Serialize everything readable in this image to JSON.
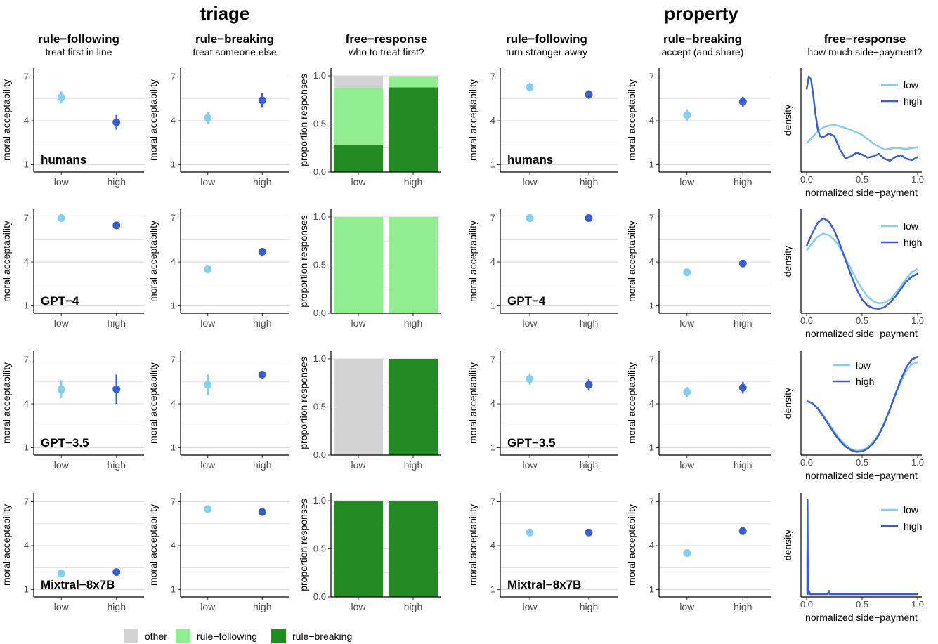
{
  "sections": [
    {
      "title": "triage",
      "columns": [
        {
          "title": "rule−following",
          "subtitle": "treat first in line"
        },
        {
          "title": "rule−breaking",
          "subtitle": "treat someone else"
        },
        {
          "title": "free−response",
          "subtitle": "who to treat first?"
        }
      ]
    },
    {
      "title": "property",
      "columns": [
        {
          "title": "rule−following",
          "subtitle": "turn stranger away"
        },
        {
          "title": "rule−breaking",
          "subtitle": "accept (and share)"
        },
        {
          "title": "free−response",
          "subtitle": "how much side−payment?"
        }
      ]
    }
  ],
  "models": [
    "humans",
    "GPT−4",
    "GPT−3.5",
    "Mixtral−8x7B"
  ],
  "axis_labels": {
    "moral": "moral acceptability",
    "proportion": "proportion responses",
    "density": "density",
    "side_payment": "normalized side−payment"
  },
  "bar_legend": [
    {
      "label": "other",
      "color": "#d3d3d3"
    },
    {
      "label": "rule−following",
      "color": "#90ee90"
    },
    {
      "label": "rule−breaking",
      "color": "#228b22"
    }
  ],
  "density_legend": [
    {
      "label": "low",
      "color": "#87ceeb"
    },
    {
      "label": "high",
      "color": "#3a5fcd"
    }
  ],
  "chart_data": [
    {
      "type": "scatter",
      "name": "triage-rule-following",
      "categories": [
        "low",
        "high"
      ],
      "ylim": [
        0.5,
        7.6
      ],
      "yticks": [
        1,
        4,
        7
      ],
      "panels": [
        {
          "model": "humans",
          "points": [
            {
              "x": "low",
              "y": 5.6,
              "lo": 5.2,
              "hi": 6.0
            },
            {
              "x": "high",
              "y": 3.9,
              "lo": 3.4,
              "hi": 4.4
            }
          ]
        },
        {
          "model": "GPT−4",
          "points": [
            {
              "x": "low",
              "y": 7.0,
              "lo": 6.95,
              "hi": 7.05
            },
            {
              "x": "high",
              "y": 6.5,
              "lo": 6.3,
              "hi": 6.7
            }
          ]
        },
        {
          "model": "GPT−3.5",
          "points": [
            {
              "x": "low",
              "y": 5.0,
              "lo": 4.4,
              "hi": 5.6
            },
            {
              "x": "high",
              "y": 5.0,
              "lo": 4.0,
              "hi": 6.0
            }
          ]
        },
        {
          "model": "Mixtral−8x7B",
          "points": [
            {
              "x": "low",
              "y": 2.1,
              "lo": 2.0,
              "hi": 2.2
            },
            {
              "x": "high",
              "y": 2.2,
              "lo": 2.05,
              "hi": 2.35
            }
          ]
        }
      ]
    },
    {
      "type": "scatter",
      "name": "triage-rule-breaking",
      "categories": [
        "low",
        "high"
      ],
      "ylim": [
        0.5,
        7.6
      ],
      "yticks": [
        1,
        4,
        7
      ],
      "panels": [
        {
          "points": [
            {
              "x": "low",
              "y": 4.2,
              "lo": 3.8,
              "hi": 4.6
            },
            {
              "x": "high",
              "y": 5.4,
              "lo": 4.9,
              "hi": 5.9
            }
          ]
        },
        {
          "points": [
            {
              "x": "low",
              "y": 3.5,
              "lo": 3.25,
              "hi": 3.75
            },
            {
              "x": "high",
              "y": 4.7,
              "lo": 4.45,
              "hi": 4.95
            }
          ]
        },
        {
          "points": [
            {
              "x": "low",
              "y": 5.3,
              "lo": 4.6,
              "hi": 6.0
            },
            {
              "x": "high",
              "y": 6.0,
              "lo": 5.95,
              "hi": 6.05
            }
          ]
        },
        {
          "points": [
            {
              "x": "low",
              "y": 6.5,
              "lo": 6.4,
              "hi": 6.6
            },
            {
              "x": "high",
              "y": 6.3,
              "lo": 6.1,
              "hi": 6.5
            }
          ]
        }
      ]
    },
    {
      "type": "bar",
      "name": "triage-free-response",
      "stacked": true,
      "categories": [
        "low",
        "high"
      ],
      "ylim": [
        0,
        1.08
      ],
      "yticks": [
        "0.0",
        "0.5",
        "1.0"
      ],
      "panels": [
        {
          "stacks": [
            {
              "x": "low",
              "rule−breaking": 0.28,
              "rule−following": 0.59,
              "other": 0.13
            },
            {
              "x": "high",
              "rule−breaking": 0.88,
              "rule−following": 0.11,
              "other": 0.01
            }
          ]
        },
        {
          "stacks": [
            {
              "x": "low",
              "rule−breaking": 0.0,
              "rule−following": 1.0,
              "other": 0.0
            },
            {
              "x": "high",
              "rule−breaking": 0.0,
              "rule−following": 1.0,
              "other": 0.0
            }
          ]
        },
        {
          "stacks": [
            {
              "x": "low",
              "rule−breaking": 0.0,
              "rule−following": 0.0,
              "other": 1.0
            },
            {
              "x": "high",
              "rule−breaking": 1.0,
              "rule−following": 0.0,
              "other": 0.0
            }
          ]
        },
        {
          "stacks": [
            {
              "x": "low",
              "rule−breaking": 1.0,
              "rule−following": 0.0,
              "other": 0.0
            },
            {
              "x": "high",
              "rule−breaking": 1.0,
              "rule−following": 0.0,
              "other": 0.0
            }
          ]
        }
      ]
    },
    {
      "type": "scatter",
      "name": "property-rule-following",
      "categories": [
        "low",
        "high"
      ],
      "ylim": [
        0.5,
        7.6
      ],
      "yticks": [
        1,
        4,
        7
      ],
      "panels": [
        {
          "model": "humans",
          "points": [
            {
              "x": "low",
              "y": 6.3,
              "lo": 6.0,
              "hi": 6.6
            },
            {
              "x": "high",
              "y": 5.8,
              "lo": 5.5,
              "hi": 6.1
            }
          ]
        },
        {
          "model": "GPT−4",
          "points": [
            {
              "x": "low",
              "y": 7.0,
              "lo": 6.95,
              "hi": 7.05
            },
            {
              "x": "high",
              "y": 7.0,
              "lo": 6.95,
              "hi": 7.05
            }
          ]
        },
        {
          "model": "GPT−3.5",
          "points": [
            {
              "x": "low",
              "y": 5.7,
              "lo": 5.3,
              "hi": 6.1
            },
            {
              "x": "high",
              "y": 5.3,
              "lo": 4.9,
              "hi": 5.7
            }
          ]
        },
        {
          "model": "Mixtral−8x7B",
          "points": [
            {
              "x": "low",
              "y": 4.9,
              "lo": 4.85,
              "hi": 4.95
            },
            {
              "x": "high",
              "y": 4.9,
              "lo": 4.85,
              "hi": 4.95
            }
          ]
        }
      ]
    },
    {
      "type": "scatter",
      "name": "property-rule-breaking",
      "categories": [
        "low",
        "high"
      ],
      "ylim": [
        0.5,
        7.6
      ],
      "yticks": [
        1,
        4,
        7
      ],
      "panels": [
        {
          "points": [
            {
              "x": "low",
              "y": 4.4,
              "lo": 4.0,
              "hi": 4.8
            },
            {
              "x": "high",
              "y": 5.3,
              "lo": 4.95,
              "hi": 5.65
            }
          ]
        },
        {
          "points": [
            {
              "x": "low",
              "y": 3.3,
              "lo": 3.25,
              "hi": 3.35
            },
            {
              "x": "high",
              "y": 3.9,
              "lo": 3.85,
              "hi": 3.95
            }
          ]
        },
        {
          "points": [
            {
              "x": "low",
              "y": 4.8,
              "lo": 4.45,
              "hi": 5.15
            },
            {
              "x": "high",
              "y": 5.1,
              "lo": 4.7,
              "hi": 5.5
            }
          ]
        },
        {
          "points": [
            {
              "x": "low",
              "y": 3.5,
              "lo": 3.45,
              "hi": 3.55
            },
            {
              "x": "high",
              "y": 5.0,
              "lo": 4.95,
              "hi": 5.05
            }
          ]
        }
      ]
    },
    {
      "type": "line",
      "name": "property-free-response-density",
      "xlim": [
        0,
        1
      ],
      "xticks": [
        "0.0",
        "0.5",
        "1.0"
      ],
      "legend_position": "top-right",
      "panels": [
        {
          "ymax": 8.0,
          "legend_position": "top-right",
          "series": [
            {
              "name": "low",
              "x": [
                0,
                0.05,
                0.1,
                0.15,
                0.2,
                0.25,
                0.3,
                0.4,
                0.5,
                0.6,
                0.7,
                0.8,
                0.9,
                1.0
              ],
              "y": [
                2.1,
                2.6,
                3.1,
                3.4,
                3.55,
                3.6,
                3.5,
                3.2,
                2.8,
                2.1,
                1.6,
                1.75,
                1.65,
                1.8
              ]
            },
            {
              "name": "high",
              "x": [
                0,
                0.02,
                0.04,
                0.06,
                0.08,
                0.1,
                0.12,
                0.15,
                0.2,
                0.25,
                0.3,
                0.35,
                0.4,
                0.45,
                0.5,
                0.55,
                0.6,
                0.65,
                0.7,
                0.75,
                0.8,
                0.85,
                0.9,
                0.95,
                1.0
              ],
              "y": [
                6.5,
                7.55,
                7.3,
                6.0,
                4.5,
                3.3,
                2.7,
                2.6,
                2.9,
                2.7,
                1.6,
                0.9,
                1.05,
                1.35,
                1.2,
                0.95,
                1.05,
                1.25,
                0.85,
                0.7,
                1.0,
                1.15,
                0.85,
                0.75,
                1.0
              ]
            }
          ]
        },
        {
          "ymax": 3.2,
          "legend_position": "top-right",
          "series": [
            {
              "name": "low",
              "x": [
                0,
                0.05,
                0.1,
                0.15,
                0.2,
                0.25,
                0.3,
                0.35,
                0.4,
                0.45,
                0.5,
                0.55,
                0.6,
                0.65,
                0.7,
                0.75,
                0.8,
                0.85,
                0.9,
                0.95,
                1.0
              ],
              "y": [
                1.95,
                2.2,
                2.4,
                2.5,
                2.45,
                2.3,
                2.05,
                1.7,
                1.35,
                1.0,
                0.7,
                0.45,
                0.3,
                0.23,
                0.25,
                0.35,
                0.55,
                0.8,
                1.05,
                1.25,
                1.35
              ]
            },
            {
              "name": "high",
              "x": [
                0,
                0.05,
                0.1,
                0.15,
                0.2,
                0.25,
                0.3,
                0.35,
                0.4,
                0.45,
                0.5,
                0.55,
                0.6,
                0.65,
                0.7,
                0.75,
                0.8,
                0.85,
                0.9,
                0.95,
                1.0
              ],
              "y": [
                2.1,
                2.5,
                2.85,
                3.0,
                2.9,
                2.6,
                2.15,
                1.65,
                1.15,
                0.7,
                0.35,
                0.15,
                0.07,
                0.05,
                0.1,
                0.25,
                0.45,
                0.7,
                0.95,
                1.1,
                1.2
              ]
            }
          ]
        },
        {
          "ymax": 2.4,
          "legend_position": "top-center",
          "series": [
            {
              "name": "low",
              "x": [
                0,
                0.05,
                0.1,
                0.15,
                0.2,
                0.25,
                0.3,
                0.35,
                0.4,
                0.45,
                0.5,
                0.55,
                0.6,
                0.65,
                0.7,
                0.75,
                0.8,
                0.85,
                0.9,
                0.95,
                1.0
              ],
              "y": [
                1.25,
                1.2,
                1.08,
                0.9,
                0.7,
                0.5,
                0.32,
                0.18,
                0.08,
                0.04,
                0.05,
                0.12,
                0.25,
                0.45,
                0.72,
                1.05,
                1.4,
                1.72,
                2.0,
                2.15,
                2.2
              ]
            },
            {
              "name": "high",
              "x": [
                0,
                0.05,
                0.1,
                0.15,
                0.2,
                0.25,
                0.3,
                0.35,
                0.4,
                0.45,
                0.5,
                0.55,
                0.6,
                0.65,
                0.7,
                0.75,
                0.8,
                0.85,
                0.9,
                0.95,
                1.0
              ],
              "y": [
                1.25,
                1.2,
                1.07,
                0.88,
                0.67,
                0.46,
                0.28,
                0.14,
                0.05,
                0.01,
                0.02,
                0.09,
                0.22,
                0.42,
                0.7,
                1.05,
                1.42,
                1.78,
                2.08,
                2.27,
                2.33
              ]
            }
          ]
        },
        {
          "ymax": 10.0,
          "legend_position": "top-right",
          "series": [
            {
              "name": "low",
              "x": [
                0,
                1.0
              ],
              "y": [
                0,
                0
              ]
            },
            {
              "name": "high",
              "x": [
                0,
                0.006,
                0.008,
                0.012,
                0.016,
                0.02,
                0.025,
                0.03,
                0.18,
                0.19,
                0.2,
                0.21,
                0.22,
                1.0
              ],
              "y": [
                0,
                0,
                9.6,
                0.4,
                0.7,
                0.05,
                0.3,
                0,
                0,
                0,
                0.35,
                0,
                0,
                0
              ]
            }
          ]
        }
      ]
    }
  ]
}
